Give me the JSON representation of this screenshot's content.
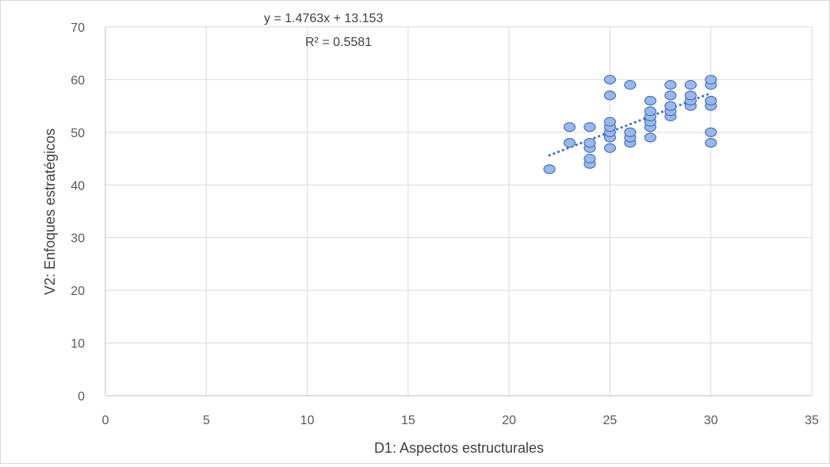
{
  "chart_data": {
    "type": "scatter",
    "xlabel": "D1: Aspectos estructurales",
    "ylabel": "V2: Enfoques estratégicos",
    "xlim": [
      0,
      35
    ],
    "ylim": [
      0,
      70
    ],
    "x_ticks": [
      0,
      5,
      10,
      15,
      20,
      25,
      30,
      35
    ],
    "y_ticks": [
      0,
      10,
      20,
      30,
      40,
      50,
      60,
      70
    ],
    "grid": true,
    "colors": {
      "marker_fill": "#9db8e6",
      "marker_edge": "#4472c4",
      "trendline": "#4472c4"
    },
    "trendline": {
      "type": "linear-dotted",
      "slope": 1.4763,
      "intercept": 13.153,
      "x_range": [
        22,
        30
      ],
      "equation": "y = 1.4763x + 13.153",
      "r_squared": "R² = 0.5581"
    },
    "points": [
      {
        "x": 22,
        "y": 43
      },
      {
        "x": 23,
        "y": 48
      },
      {
        "x": 23,
        "y": 51
      },
      {
        "x": 24,
        "y": 44
      },
      {
        "x": 24,
        "y": 45
      },
      {
        "x": 24,
        "y": 47
      },
      {
        "x": 24,
        "y": 48
      },
      {
        "x": 24,
        "y": 51
      },
      {
        "x": 25,
        "y": 47
      },
      {
        "x": 25,
        "y": 49
      },
      {
        "x": 25,
        "y": 50
      },
      {
        "x": 25,
        "y": 51
      },
      {
        "x": 25,
        "y": 52
      },
      {
        "x": 25,
        "y": 57
      },
      {
        "x": 25,
        "y": 60
      },
      {
        "x": 26,
        "y": 48
      },
      {
        "x": 26,
        "y": 49
      },
      {
        "x": 26,
        "y": 50
      },
      {
        "x": 26,
        "y": 59
      },
      {
        "x": 27,
        "y": 49
      },
      {
        "x": 27,
        "y": 51
      },
      {
        "x": 27,
        "y": 52
      },
      {
        "x": 27,
        "y": 53
      },
      {
        "x": 27,
        "y": 54
      },
      {
        "x": 27,
        "y": 56
      },
      {
        "x": 28,
        "y": 53
      },
      {
        "x": 28,
        "y": 54
      },
      {
        "x": 28,
        "y": 55
      },
      {
        "x": 28,
        "y": 57
      },
      {
        "x": 28,
        "y": 59
      },
      {
        "x": 29,
        "y": 55
      },
      {
        "x": 29,
        "y": 56
      },
      {
        "x": 29,
        "y": 57
      },
      {
        "x": 29,
        "y": 59
      },
      {
        "x": 30,
        "y": 48
      },
      {
        "x": 30,
        "y": 50
      },
      {
        "x": 30,
        "y": 55
      },
      {
        "x": 30,
        "y": 56
      },
      {
        "x": 30,
        "y": 59
      },
      {
        "x": 30,
        "y": 60
      }
    ]
  }
}
